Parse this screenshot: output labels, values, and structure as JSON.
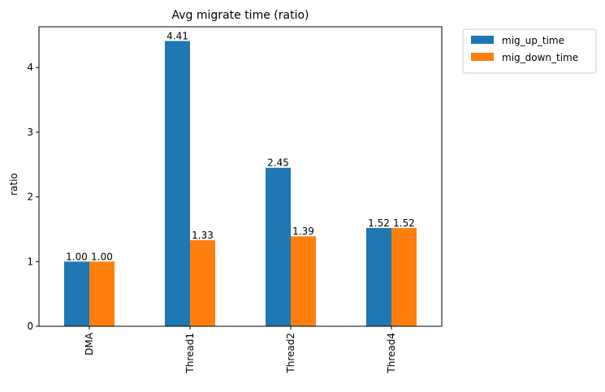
{
  "chart_data": {
    "type": "bar",
    "title": "Avg migrate time (ratio)",
    "xlabel": "",
    "ylabel": "ratio",
    "categories": [
      "DMA",
      "Thread1",
      "Thread2",
      "Thread4"
    ],
    "series": [
      {
        "name": "mig_up_time",
        "color": "#1f77b4",
        "values": [
          1.0,
          4.41,
          2.45,
          1.52
        ],
        "labels": [
          "1.00",
          "4.41",
          "2.45",
          "1.52"
        ]
      },
      {
        "name": "mig_down_time",
        "color": "#ff7f0e",
        "values": [
          1.0,
          1.33,
          1.39,
          1.52
        ],
        "labels": [
          "1.00",
          "1.33",
          "1.39",
          "1.52"
        ]
      }
    ],
    "ylim": [
      0,
      4.63
    ],
    "yticks": [
      "0",
      "1",
      "2",
      "3",
      "4"
    ],
    "grid": false,
    "legend_position": "outside-right"
  }
}
